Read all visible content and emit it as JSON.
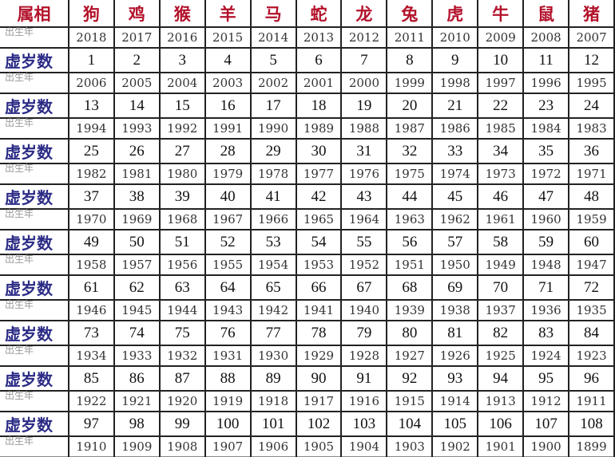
{
  "header": {
    "label": "属相",
    "zodiac": [
      "狗",
      "鸡",
      "猴",
      "羊",
      "马",
      "蛇",
      "龙",
      "兔",
      "虎",
      "牛",
      "鼠",
      "猪"
    ]
  },
  "year_label": "出生年",
  "age_label": "虚岁数",
  "rows": [
    {
      "years": [
        2018,
        2017,
        2016,
        2015,
        2014,
        2013,
        2012,
        2011,
        2010,
        2009,
        2008,
        2007
      ],
      "ages": [
        1,
        2,
        3,
        4,
        5,
        6,
        7,
        8,
        9,
        10,
        11,
        12
      ]
    },
    {
      "years": [
        2006,
        2005,
        2004,
        2003,
        2002,
        2001,
        2000,
        1999,
        1998,
        1997,
        1996,
        1995
      ],
      "ages": [
        13,
        14,
        15,
        16,
        17,
        18,
        19,
        20,
        21,
        22,
        23,
        24
      ]
    },
    {
      "years": [
        1994,
        1993,
        1992,
        1991,
        1990,
        1989,
        1988,
        1987,
        1986,
        1985,
        1984,
        1983
      ],
      "ages": [
        25,
        26,
        27,
        28,
        29,
        30,
        31,
        32,
        33,
        34,
        35,
        36
      ]
    },
    {
      "years": [
        1982,
        1981,
        1980,
        1979,
        1978,
        1977,
        1976,
        1975,
        1974,
        1973,
        1972,
        1971
      ],
      "ages": [
        37,
        38,
        39,
        40,
        41,
        42,
        43,
        44,
        45,
        46,
        47,
        48
      ]
    },
    {
      "years": [
        1970,
        1969,
        1968,
        1967,
        1966,
        1965,
        1964,
        1963,
        1962,
        1961,
        1960,
        1959
      ],
      "ages": [
        49,
        50,
        51,
        52,
        53,
        54,
        55,
        56,
        57,
        58,
        59,
        60
      ]
    },
    {
      "years": [
        1958,
        1957,
        1956,
        1955,
        1954,
        1953,
        1952,
        1951,
        1950,
        1949,
        1948,
        1947
      ],
      "ages": [
        61,
        62,
        63,
        64,
        65,
        66,
        67,
        68,
        69,
        70,
        71,
        72
      ]
    },
    {
      "years": [
        1946,
        1945,
        1944,
        1943,
        1942,
        1941,
        1940,
        1939,
        1938,
        1937,
        1936,
        1935
      ],
      "ages": [
        73,
        74,
        75,
        76,
        77,
        78,
        79,
        80,
        81,
        82,
        83,
        84
      ]
    },
    {
      "years": [
        1934,
        1933,
        1932,
        1931,
        1930,
        1929,
        1928,
        1927,
        1926,
        1925,
        1924,
        1923
      ],
      "ages": [
        85,
        86,
        87,
        88,
        89,
        90,
        91,
        92,
        93,
        94,
        95,
        96
      ]
    },
    {
      "years": [
        1922,
        1921,
        1920,
        1919,
        1918,
        1917,
        1916,
        1915,
        1914,
        1913,
        1912,
        1911
      ],
      "ages": [
        97,
        98,
        99,
        100,
        101,
        102,
        103,
        104,
        105,
        106,
        107,
        108
      ]
    },
    {
      "years": [
        1910,
        1909,
        1908,
        1907,
        1906,
        1905,
        1904,
        1903,
        1902,
        1901,
        1900,
        1899
      ]
    }
  ]
}
